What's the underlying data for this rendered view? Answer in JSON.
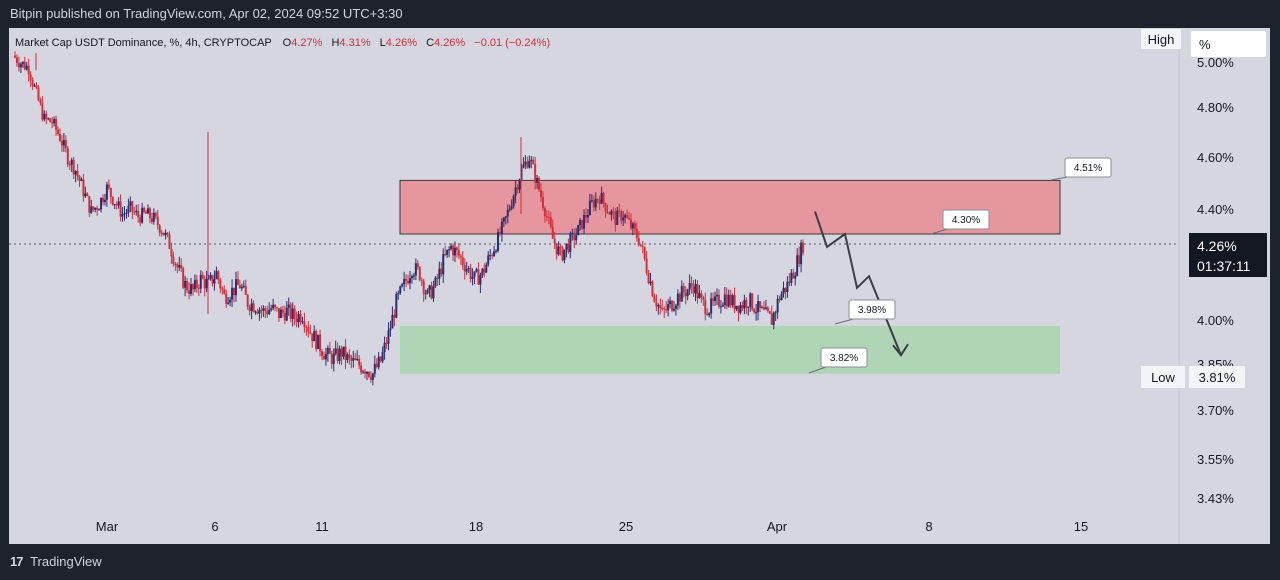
{
  "header": {
    "published": "Bitpin published on TradingView.com, Apr 02, 2024 09:52 UTC+3:30"
  },
  "legend": {
    "symbol": "Market Cap USDT Dominance, %, 4h, CRYPTOCAP",
    "o_label": "O",
    "o_value": "4.27%",
    "h_label": "H",
    "h_value": "4.31%",
    "l_label": "L",
    "l_value": "4.26%",
    "c_label": "C",
    "c_value": "4.26%",
    "change": "−0.01 (−0.24%)"
  },
  "footer": {
    "logo": "17",
    "brand": "TradingView"
  },
  "chart_data": {
    "type": "candlestick",
    "y_unit": "%",
    "y_ticks": [
      "5.00%",
      "4.80%",
      "4.60%",
      "4.40%",
      "4.00%",
      "3.85%",
      "3.70%",
      "3.55%",
      "3.43%"
    ],
    "x_ticks": [
      "Mar",
      "6",
      "11",
      "18",
      "25",
      "Apr",
      "8",
      "15"
    ],
    "colors": {
      "up": "#2a2e6e",
      "down": "#d32f3a",
      "resistance_zone": "#e88b93",
      "support_zone": "#a9d3ae"
    },
    "current": {
      "price": "4.26%",
      "countdown": "01:37:11"
    },
    "high_badge": {
      "label": "High",
      "value": "%"
    },
    "low_badge": {
      "label": "Low",
      "value": "3.81%"
    },
    "callouts": [
      "4.51%",
      "4.30%",
      "3.98%",
      "3.82%"
    ],
    "zones": [
      {
        "name": "resistance",
        "from": 4.3,
        "to": 4.51
      },
      {
        "name": "support",
        "from": 3.82,
        "to": 3.98
      }
    ],
    "projected_path": [
      4.39,
      4.25,
      4.3,
      4.11,
      4.15,
      3.88
    ],
    "series_trend": [
      5.01,
      4.98,
      4.96,
      4.85,
      4.75,
      4.74,
      4.68,
      4.6,
      4.55,
      4.47,
      4.39,
      4.42,
      4.48,
      4.43,
      4.38,
      4.4,
      4.37,
      4.38,
      4.36,
      4.32,
      4.26,
      4.18,
      4.12,
      4.1,
      4.14,
      4.12,
      4.16,
      4.08,
      4.1,
      4.12,
      4.06,
      4.05,
      4.03,
      4.04,
      4.02,
      4.03,
      4.01,
      4.02,
      3.96,
      3.92,
      3.88,
      3.87,
      3.89,
      3.86,
      3.85,
      3.84,
      3.82,
      3.86,
      3.95,
      4.06,
      4.12,
      4.18,
      4.16,
      4.08,
      4.12,
      4.2,
      4.25,
      4.22,
      4.18,
      4.14,
      4.16,
      4.22,
      4.28,
      4.36,
      4.46,
      4.55,
      4.6,
      4.5,
      4.4,
      4.28,
      4.22,
      4.26,
      4.3,
      4.36,
      4.42,
      4.45,
      4.4,
      4.36,
      4.38,
      4.33,
      4.28,
      4.18,
      4.08,
      4.02,
      4.05,
      4.08,
      4.1,
      4.12,
      4.06,
      4.04,
      4.06,
      4.08,
      4.06,
      4.05,
      4.07,
      4.04,
      4.02,
      4.0,
      4.08,
      4.12,
      4.18,
      4.26
    ]
  }
}
